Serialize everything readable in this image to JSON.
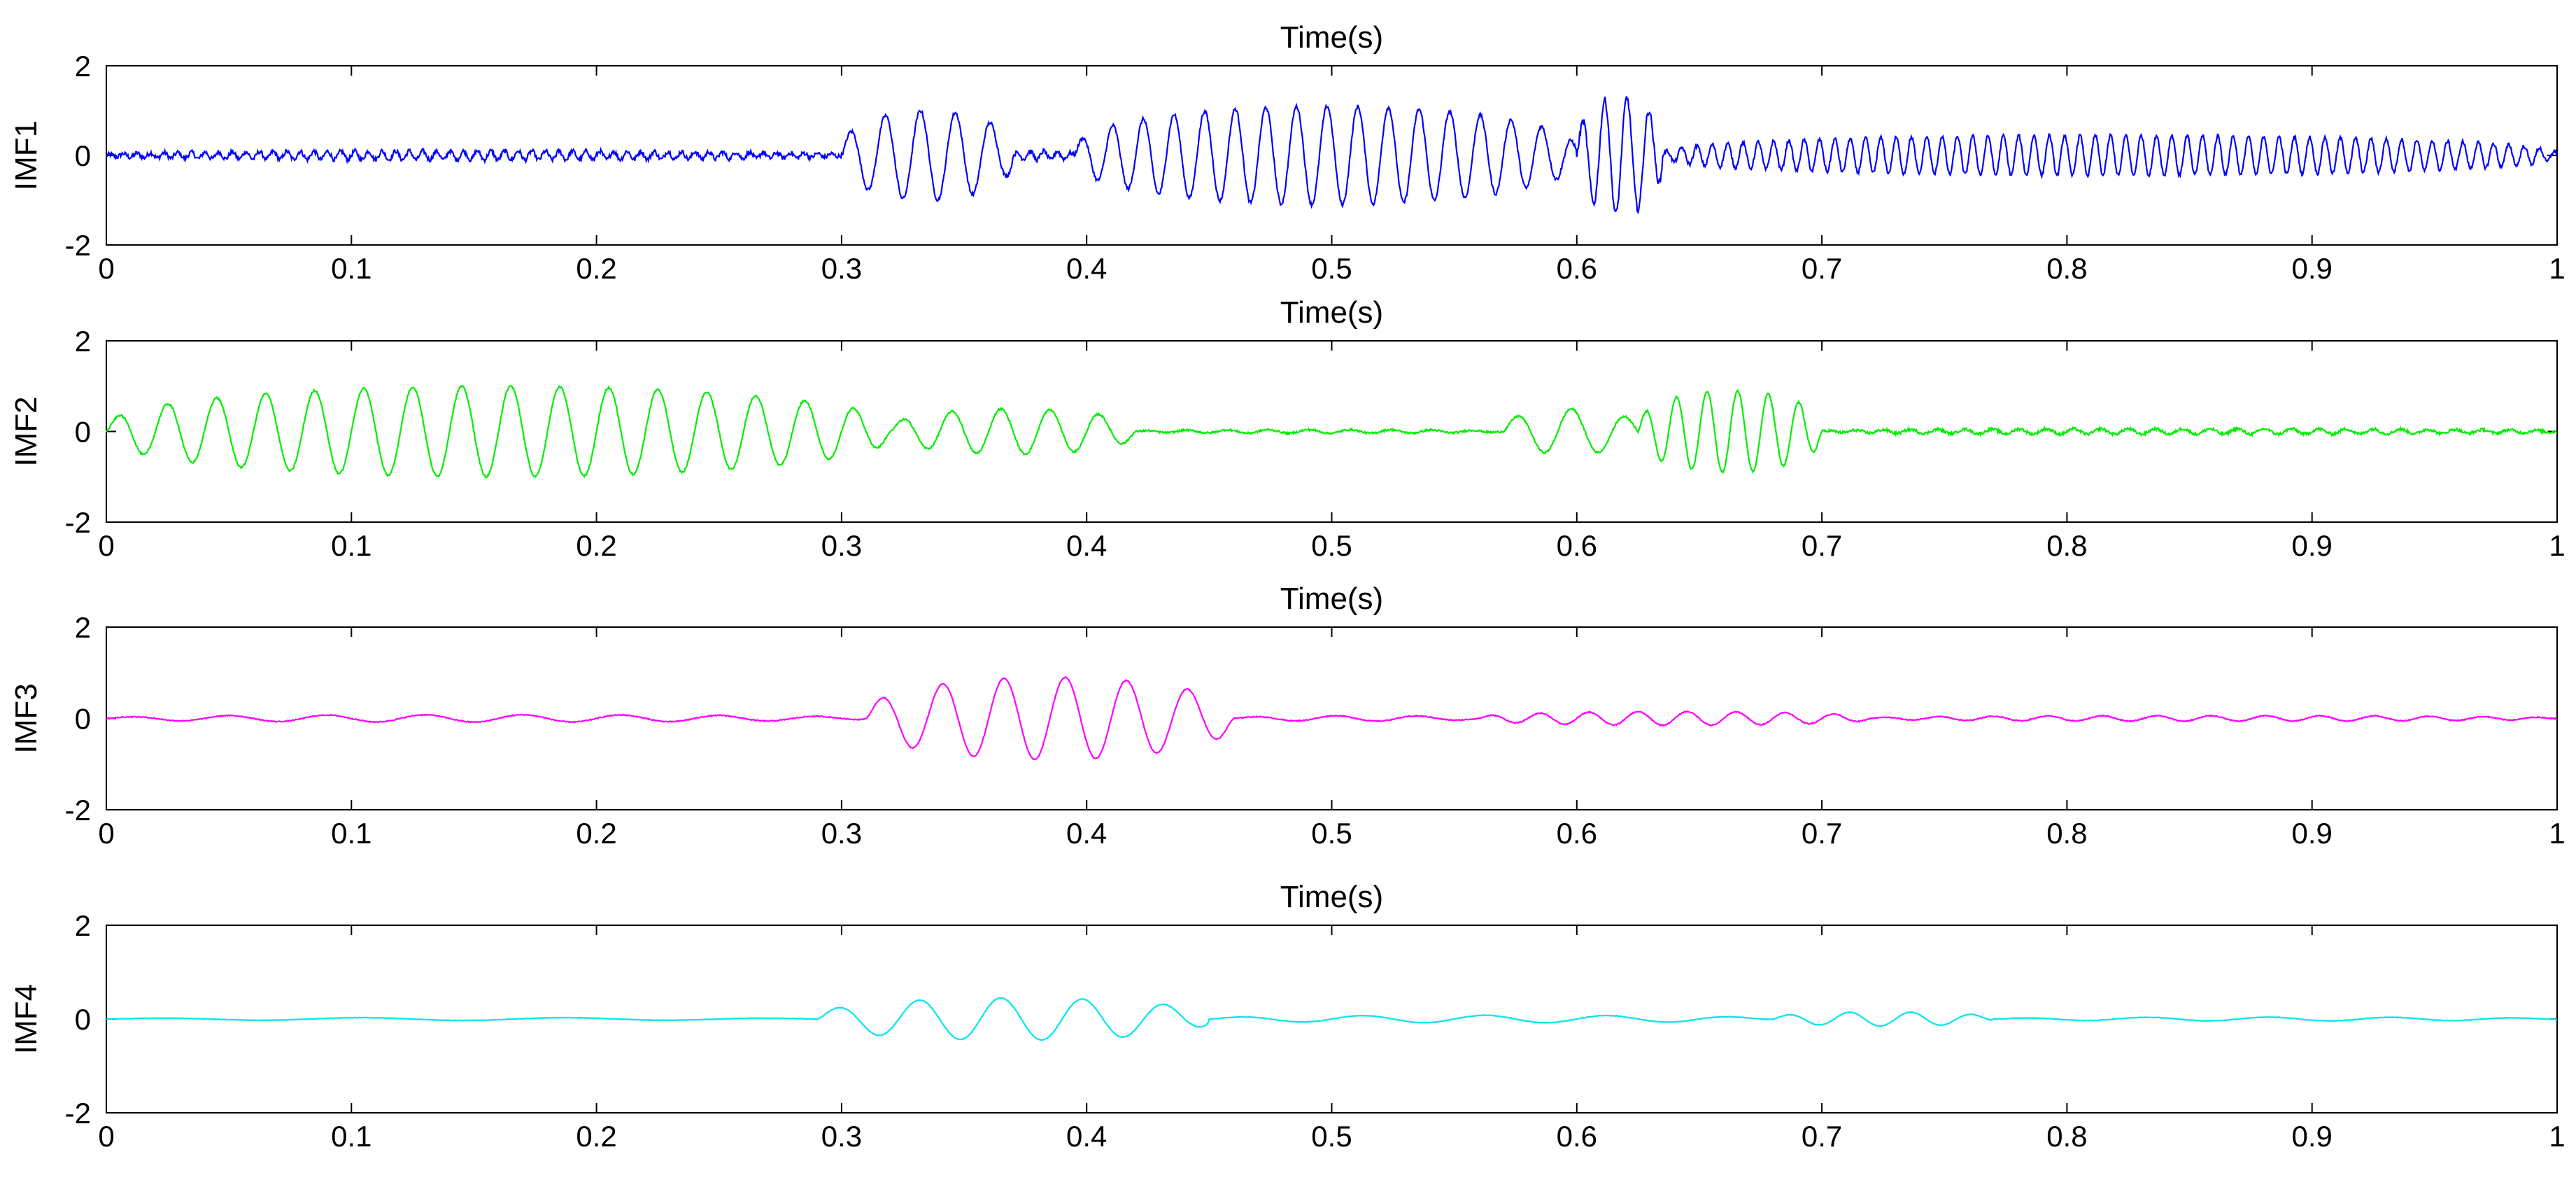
{
  "chart_data": [
    {
      "type": "line",
      "title": "Time(s)",
      "ylabel": "IMF1",
      "xlim": [
        0,
        1
      ],
      "ylim": [
        -2,
        2
      ],
      "xticks": [
        0,
        0.1,
        0.2,
        0.3,
        0.4,
        0.5,
        0.6,
        0.7,
        0.8,
        0.9,
        1
      ],
      "xtick_labels": [
        "0",
        "0.1",
        "0.2",
        "0.3",
        "0.4",
        "0.5",
        "0.6",
        "0.7",
        "0.8",
        "0.9",
        "1"
      ],
      "yticks": [
        -2,
        0,
        2
      ],
      "ytick_labels": [
        "-2",
        "0",
        "2"
      ],
      "color": "#0000ff",
      "segments": [
        {
          "t0": 0.0,
          "t1": 0.3,
          "freq": 180,
          "amp": 0.1,
          "noise": 0.05
        },
        {
          "t0": 0.3,
          "t1": 0.37,
          "freq": 70,
          "amp": 1.0,
          "noise": 0.04
        },
        {
          "t0": 0.37,
          "t1": 0.395,
          "freq": 180,
          "amp": 0.1,
          "noise": 0.05
        },
        {
          "t0": 0.395,
          "t1": 0.6,
          "freq": 80,
          "amp": 1.1,
          "noise": 0.04
        },
        {
          "t0": 0.6,
          "t1": 0.635,
          "freq": 110,
          "amp": 1.3,
          "noise": 0.08
        },
        {
          "t0": 0.635,
          "t1": 1.0,
          "freq": 160,
          "amp": 0.45,
          "noise": 0.04
        }
      ]
    },
    {
      "type": "line",
      "title": "Time(s)",
      "ylabel": "IMF2",
      "xlim": [
        0,
        1
      ],
      "ylim": [
        -2,
        2
      ],
      "xticks": [
        0,
        0.1,
        0.2,
        0.3,
        0.4,
        0.5,
        0.6,
        0.7,
        0.8,
        0.9,
        1
      ],
      "xtick_labels": [
        "0",
        "0.1",
        "0.2",
        "0.3",
        "0.4",
        "0.5",
        "0.6",
        "0.7",
        "0.8",
        "0.9",
        "1"
      ],
      "yticks": [
        -2,
        0,
        2
      ],
      "ytick_labels": [
        "-2",
        "0",
        "2"
      ],
      "color": "#00ee00",
      "segments": [
        {
          "t0": 0.0,
          "t1": 0.32,
          "freq": 50,
          "amp": 1.0,
          "noise": 0.02
        },
        {
          "t0": 0.32,
          "t1": 0.42,
          "freq": 50,
          "amp": 0.5,
          "noise": 0.02
        },
        {
          "t0": 0.42,
          "t1": 0.57,
          "freq": 60,
          "amp": 0.04,
          "noise": 0.02
        },
        {
          "t0": 0.57,
          "t1": 0.625,
          "freq": 45,
          "amp": 0.5,
          "noise": 0.02
        },
        {
          "t0": 0.625,
          "t1": 0.7,
          "freq": 80,
          "amp": 0.9,
          "noise": 0.02
        },
        {
          "t0": 0.7,
          "t1": 1.0,
          "freq": 90,
          "amp": 0.06,
          "noise": 0.03
        }
      ]
    },
    {
      "type": "line",
      "title": "Time(s)",
      "ylabel": "IMF3",
      "xlim": [
        0,
        1
      ],
      "ylim": [
        -2,
        2
      ],
      "xticks": [
        0,
        0.1,
        0.2,
        0.3,
        0.4,
        0.5,
        0.6,
        0.7,
        0.8,
        0.9,
        1
      ],
      "xtick_labels": [
        "0",
        "0.1",
        "0.2",
        "0.3",
        "0.4",
        "0.5",
        "0.6",
        "0.7",
        "0.8",
        "0.9",
        "1"
      ],
      "yticks": [
        -2,
        0,
        2
      ],
      "ytick_labels": [
        "-2",
        "0",
        "2"
      ],
      "color": "#ff00ff",
      "segments": [
        {
          "t0": 0.0,
          "t1": 0.31,
          "freq": 25,
          "amp": 0.08,
          "noise": 0.01
        },
        {
          "t0": 0.31,
          "t1": 0.46,
          "freq": 40,
          "amp": 0.9,
          "noise": 0.01
        },
        {
          "t0": 0.46,
          "t1": 0.56,
          "freq": 30,
          "amp": 0.06,
          "noise": 0.01
        },
        {
          "t0": 0.56,
          "t1": 0.72,
          "freq": 50,
          "amp": 0.15,
          "noise": 0.01
        },
        {
          "t0": 0.72,
          "t1": 1.0,
          "freq": 45,
          "amp": 0.06,
          "noise": 0.01
        }
      ]
    },
    {
      "type": "line",
      "title": "Time(s)",
      "ylabel": "IMF4",
      "xlim": [
        0,
        1
      ],
      "ylim": [
        -2,
        2
      ],
      "xticks": [
        0,
        0.1,
        0.2,
        0.3,
        0.4,
        0.5,
        0.6,
        0.7,
        0.8,
        0.9,
        1
      ],
      "xtick_labels": [
        "0",
        "0.1",
        "0.2",
        "0.3",
        "0.4",
        "0.5",
        "0.6",
        "0.7",
        "0.8",
        "0.9",
        "1"
      ],
      "yticks": [
        -2,
        0,
        2
      ],
      "ytick_labels": [
        "-2",
        "0",
        "2"
      ],
      "color": "#00e5ee",
      "segments": [
        {
          "t0": 0.0,
          "t1": 0.29,
          "freq": 12,
          "amp": 0.03,
          "noise": 0.005
        },
        {
          "t0": 0.29,
          "t1": 0.45,
          "freq": 30,
          "amp": 0.45,
          "noise": 0.005
        },
        {
          "t0": 0.45,
          "t1": 0.68,
          "freq": 20,
          "amp": 0.08,
          "noise": 0.005
        },
        {
          "t0": 0.68,
          "t1": 0.77,
          "freq": 40,
          "amp": 0.15,
          "noise": 0.005
        },
        {
          "t0": 0.77,
          "t1": 1.0,
          "freq": 20,
          "amp": 0.04,
          "noise": 0.005
        }
      ]
    }
  ]
}
